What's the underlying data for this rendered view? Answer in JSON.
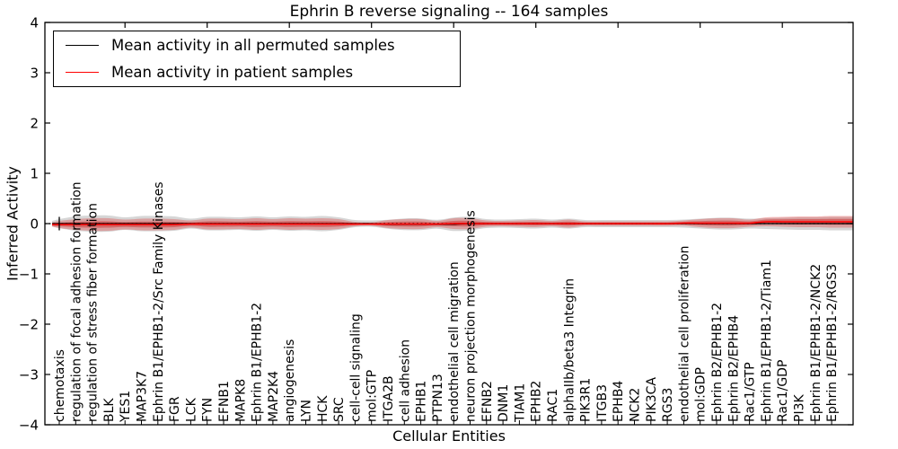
{
  "chart_data": {
    "type": "violin",
    "title": "Ephrin B reverse signaling -- 164 samples",
    "xlabel": "Cellular Entities",
    "ylabel": "Inferred Activity",
    "ylim": [
      -4,
      4
    ],
    "ytick_values": [
      4,
      3,
      2,
      1,
      0,
      -1,
      -2,
      -3,
      -4
    ],
    "ytick_labels": [
      "4",
      "3",
      "2",
      "1",
      "0",
      "−1",
      "−2",
      "−3",
      "−4"
    ],
    "grid": false,
    "legend_position": "upper left",
    "colors": {
      "permuted_line": "#000000",
      "patient_line": "#ff0000",
      "permuted_envelope": "#999999",
      "patient_envelope": "#dd3333",
      "patient_envelope_inner": "#cc2222",
      "zero_line": "#000000",
      "frame": "#000000"
    },
    "entities": [
      "chemotaxis",
      "regulation of focal adhesion formation",
      "regulation of stress fiber formation",
      "BLK",
      "YES1",
      "MAP3K7",
      "Ephrin B1/EPHB1-2/Src Family Kinases",
      "FGR",
      "LCK",
      "FYN",
      "EFNB1",
      "MAPK8",
      "Ephrin B1/EPHB1-2",
      "MAP2K4",
      "angiogenesis",
      "LYN",
      "HCK",
      "SRC",
      "cell-cell signaling",
      "mol:GTP",
      "ITGA2B",
      "cell adhesion",
      "EPHB1",
      "PTPN13",
      "endothelial cell migration",
      "neuron projection morphogenesis",
      "EFNB2",
      "DNM1",
      "TIAM1",
      "EPHB2",
      "RAC1",
      "alphaIIb/beta3 Integrin",
      "PIK3R1",
      "ITGB3",
      "EPHB4",
      "NCK2",
      "PIK3CA",
      "RGS3",
      "endothelial cell proliferation",
      "mol:GDP",
      "Ephrin B2/EPHB1-2",
      "Ephrin B2/EPHB4",
      "Rac1/GTP",
      "Ephrin B1/EPHB1-2/Tiam1",
      "Rac1/GDP",
      "PI3K",
      "Ephrin B1/EPHB1-2/NCK2",
      "Ephrin B1/EPHB1-2/RGS3"
    ],
    "series": [
      {
        "name": "Mean activity in all permuted samples",
        "color": "#000000",
        "mean": [
          0,
          0,
          0,
          0,
          0,
          0,
          0,
          0,
          0,
          0,
          0,
          0,
          0,
          0,
          0,
          0,
          0,
          0,
          0,
          0,
          -0.013,
          -0.013,
          -0.013,
          -0.013,
          -0.013,
          0,
          0,
          0,
          0,
          0,
          0,
          0,
          0,
          0,
          0,
          0,
          0,
          0,
          0,
          0,
          0,
          0,
          0,
          0,
          0,
          0,
          0,
          0
        ],
        "spread": [
          0.089,
          0.143,
          0.161,
          0.161,
          0.125,
          0.152,
          0.152,
          0.143,
          0.098,
          0.134,
          0.134,
          0.125,
          0.143,
          0.125,
          0.143,
          0.134,
          0.152,
          0.125,
          0.071,
          0.063,
          0.089,
          0.116,
          0.116,
          0.089,
          0.134,
          0.134,
          0.089,
          0.08,
          0.089,
          0.098,
          0.08,
          0.098,
          0.071,
          0.071,
          0.071,
          0.071,
          0.071,
          0.071,
          0.08,
          0.098,
          0.116,
          0.116,
          0.098,
          0.107,
          0.116,
          0.125,
          0.125,
          0.134
        ]
      },
      {
        "name": "Mean activity in patient samples",
        "color": "#ff0000",
        "mean": [
          -0.018,
          -0.018,
          -0.018,
          -0.018,
          -0.018,
          -0.018,
          -0.018,
          -0.018,
          -0.009,
          -0.009,
          -0.009,
          -0.009,
          -0.009,
          -0.009,
          -0.009,
          -0.009,
          -0.009,
          -0.009,
          -0.009,
          -0.009,
          -0.009,
          -0.009,
          -0.009,
          -0.009,
          0,
          0,
          0,
          0,
          0,
          0,
          0,
          0,
          0,
          0,
          0,
          0,
          0,
          0,
          0.009,
          0.009,
          0.009,
          0.009,
          0.009,
          0.036,
          0.036,
          0.036,
          0.036,
          0.036
        ],
        "spread": [
          0.071,
          0.107,
          0.125,
          0.125,
          0.098,
          0.116,
          0.116,
          0.107,
          0.071,
          0.107,
          0.107,
          0.098,
          0.116,
          0.098,
          0.116,
          0.107,
          0.116,
          0.098,
          0.045,
          0.036,
          0.08,
          0.098,
          0.098,
          0.063,
          0.107,
          0.107,
          0.063,
          0.054,
          0.063,
          0.071,
          0.054,
          0.08,
          0.045,
          0.045,
          0.045,
          0.045,
          0.045,
          0.045,
          0.054,
          0.08,
          0.098,
          0.098,
          0.071,
          0.089,
          0.098,
          0.107,
          0.107,
          0.116
        ]
      }
    ],
    "top_tick_indices": [
      4,
      9,
      14,
      19,
      24,
      29,
      34,
      39,
      44
    ]
  }
}
